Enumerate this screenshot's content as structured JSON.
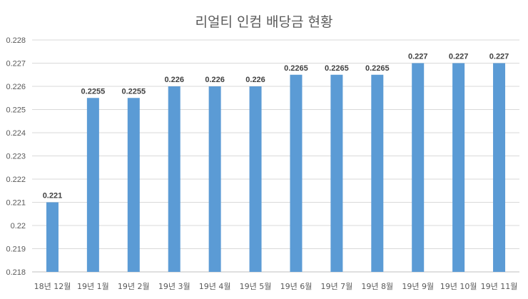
{
  "chart_data": {
    "type": "bar",
    "title": "리얼티 인컴 배당금 현황",
    "categories": [
      "18년 12월",
      "19년 1월",
      "19년 2월",
      "19년 3월",
      "19년 4월",
      "19년 5월",
      "19년 6월",
      "19년 7월",
      "19년 8월",
      "19년 9월",
      "19년 10월",
      "19년 11월"
    ],
    "values": [
      0.221,
      0.2255,
      0.2255,
      0.226,
      0.226,
      0.226,
      0.2265,
      0.2265,
      0.2265,
      0.227,
      0.227,
      0.227
    ],
    "data_labels": [
      "0.221",
      "0.2255",
      "0.2255",
      "0.226",
      "0.226",
      "0.226",
      "0.2265",
      "0.2265",
      "0.2265",
      "0.227",
      "0.227",
      "0.227"
    ],
    "yticks": [
      "0.218",
      "0.219",
      "0.22",
      "0.221",
      "0.222",
      "0.223",
      "0.224",
      "0.225",
      "0.226",
      "0.227",
      "0.228"
    ],
    "ylim": [
      0.218,
      0.228
    ],
    "grid": true,
    "legend": "none",
    "bar_color": "#5B9BD5",
    "grid_color": "#D9D9D9"
  }
}
